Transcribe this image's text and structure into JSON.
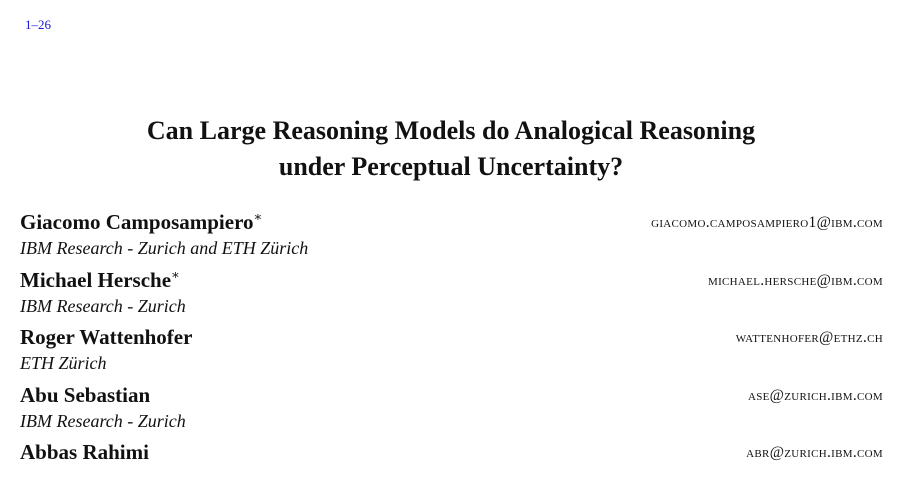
{
  "header": {
    "page_ref": "1–26"
  },
  "paper": {
    "title_line1": "Can Large Reasoning Models do Analogical Reasoning",
    "title_line2": "under Perceptual Uncertainty?"
  },
  "authors": [
    {
      "name": "Giacomo Camposampiero",
      "mark": "∗",
      "affiliation": "IBM Research - Zurich and ETH Zürich",
      "email": "GIACOMO.CAMPOSAMPIERO1@IBM.COM"
    },
    {
      "name": "Michael Hersche",
      "mark": "∗",
      "affiliation": "IBM Research - Zurich",
      "email": "MICHAEL.HERSCHE@IBM.COM"
    },
    {
      "name": "Roger Wattenhofer",
      "mark": "",
      "affiliation": "ETH Zürich",
      "email": "WATTENHOFER@ETHZ.CH"
    },
    {
      "name": "Abu Sebastian",
      "mark": "",
      "affiliation": "IBM Research - Zurich",
      "email": "ASE@ZURICH.IBM.COM"
    },
    {
      "name": "Abbas Rahimi",
      "mark": "",
      "affiliation": "",
      "email": "ABR@ZURICH.IBM.COM"
    }
  ]
}
